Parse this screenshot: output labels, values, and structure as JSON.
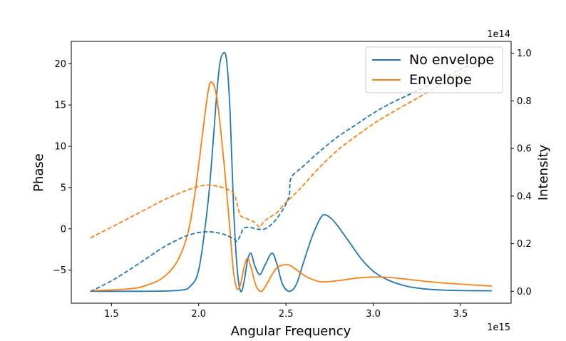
{
  "chart_data": {
    "type": "line",
    "xlabel": "Angular Frequency",
    "x_offset_label": "1e15",
    "xlim": [
      1.27,
      3.79
    ],
    "x_ticks": [
      1.5,
      2.0,
      2.5,
      3.0,
      3.5
    ],
    "x_tick_labels": [
      "1.5",
      "2.0",
      "2.5",
      "3.0",
      "3.5"
    ],
    "left_axis": {
      "label": "Phase",
      "ylim": [
        -9.0,
        22.7
      ],
      "ticks": [
        20,
        15,
        10,
        5,
        0,
        -5
      ],
      "tick_labels": [
        "20",
        "15",
        "10",
        "5",
        "0",
        "−5"
      ]
    },
    "right_axis": {
      "label": "Intensity",
      "offset_label": "1e14",
      "ylim": [
        -0.05,
        1.05
      ],
      "ticks": [
        0.0,
        0.2,
        0.4,
        0.6,
        0.8,
        1.0
      ],
      "tick_labels": [
        "0.0",
        "0.2",
        "0.4",
        "0.6",
        "0.8",
        "1.0"
      ]
    },
    "legend": {
      "placement": "top-right",
      "entries": [
        "No envelope",
        "Envelope"
      ]
    },
    "colors": {
      "no_envelope": "#1f77b4",
      "envelope": "#ff7f0e"
    },
    "series": [
      {
        "name": "No envelope",
        "axis": "right",
        "style": "solid",
        "color": "#1f77b4",
        "points": [
          [
            1.38,
            0.0
          ],
          [
            1.6,
            0.0
          ],
          [
            1.8,
            0.001
          ],
          [
            1.9,
            0.005
          ],
          [
            1.95,
            0.02
          ],
          [
            2.0,
            0.09
          ],
          [
            2.05,
            0.35
          ],
          [
            2.08,
            0.6
          ],
          [
            2.1,
            0.8
          ],
          [
            2.12,
            0.95
          ],
          [
            2.14,
            1.0
          ],
          [
            2.16,
            0.97
          ],
          [
            2.18,
            0.75
          ],
          [
            2.2,
            0.35
          ],
          [
            2.22,
            0.1
          ],
          [
            2.24,
            0.0
          ],
          [
            2.26,
            0.04
          ],
          [
            2.28,
            0.13
          ],
          [
            2.3,
            0.16
          ],
          [
            2.32,
            0.11
          ],
          [
            2.35,
            0.07
          ],
          [
            2.38,
            0.11
          ],
          [
            2.42,
            0.16
          ],
          [
            2.45,
            0.11
          ],
          [
            2.48,
            0.03
          ],
          [
            2.52,
            0.0
          ],
          [
            2.56,
            0.03
          ],
          [
            2.6,
            0.12
          ],
          [
            2.65,
            0.23
          ],
          [
            2.7,
            0.31
          ],
          [
            2.73,
            0.32
          ],
          [
            2.78,
            0.29
          ],
          [
            2.85,
            0.22
          ],
          [
            2.95,
            0.12
          ],
          [
            3.05,
            0.06
          ],
          [
            3.2,
            0.02
          ],
          [
            3.4,
            0.005
          ],
          [
            3.68,
            0.002
          ]
        ]
      },
      {
        "name": "Envelope",
        "axis": "right",
        "style": "solid",
        "color": "#ff7f0e",
        "points": [
          [
            1.38,
            0.002
          ],
          [
            1.6,
            0.01
          ],
          [
            1.7,
            0.025
          ],
          [
            1.8,
            0.06
          ],
          [
            1.88,
            0.13
          ],
          [
            1.94,
            0.25
          ],
          [
            1.98,
            0.42
          ],
          [
            2.02,
            0.65
          ],
          [
            2.05,
            0.82
          ],
          [
            2.07,
            0.88
          ],
          [
            2.1,
            0.83
          ],
          [
            2.13,
            0.65
          ],
          [
            2.16,
            0.42
          ],
          [
            2.18,
            0.25
          ],
          [
            2.2,
            0.08
          ],
          [
            2.22,
            0.01
          ],
          [
            2.24,
            0.03
          ],
          [
            2.26,
            0.1
          ],
          [
            2.28,
            0.14
          ],
          [
            2.3,
            0.1
          ],
          [
            2.33,
            0.02
          ],
          [
            2.36,
            0.0
          ],
          [
            2.39,
            0.03
          ],
          [
            2.42,
            0.07
          ],
          [
            2.45,
            0.1
          ],
          [
            2.48,
            0.11
          ],
          [
            2.52,
            0.11
          ],
          [
            2.56,
            0.09
          ],
          [
            2.62,
            0.06
          ],
          [
            2.7,
            0.04
          ],
          [
            2.8,
            0.045
          ],
          [
            2.9,
            0.055
          ],
          [
            3.0,
            0.06
          ],
          [
            3.1,
            0.058
          ],
          [
            3.2,
            0.05
          ],
          [
            3.4,
            0.035
          ],
          [
            3.68,
            0.022
          ]
        ]
      },
      {
        "name": "No envelope",
        "axis": "left",
        "style": "dashed",
        "color": "#1f77b4",
        "points": [
          [
            1.38,
            -7.6
          ],
          [
            1.5,
            -6.3
          ],
          [
            1.6,
            -5.0
          ],
          [
            1.7,
            -3.6
          ],
          [
            1.8,
            -2.2
          ],
          [
            1.9,
            -1.1
          ],
          [
            1.95,
            -0.7
          ],
          [
            2.0,
            -0.45
          ],
          [
            2.05,
            -0.35
          ],
          [
            2.1,
            -0.45
          ],
          [
            2.15,
            -0.7
          ],
          [
            2.2,
            -1.2
          ],
          [
            2.22,
            -1.5
          ],
          [
            2.24,
            -0.7
          ],
          [
            2.26,
            0.1
          ],
          [
            2.3,
            0.15
          ],
          [
            2.34,
            -0.05
          ],
          [
            2.38,
            0.0
          ],
          [
            2.42,
            0.6
          ],
          [
            2.46,
            1.6
          ],
          [
            2.5,
            3.0
          ],
          [
            2.52,
            4.2
          ],
          [
            2.53,
            6.2
          ],
          [
            2.6,
            7.6
          ],
          [
            2.7,
            9.5
          ],
          [
            2.8,
            11.2
          ],
          [
            2.9,
            12.6
          ],
          [
            3.0,
            14.0
          ],
          [
            3.1,
            15.2
          ],
          [
            3.2,
            16.2
          ],
          [
            3.3,
            17.2
          ],
          [
            3.4,
            18.3
          ],
          [
            3.5,
            19.3
          ],
          [
            3.6,
            20.3
          ],
          [
            3.68,
            21.0
          ]
        ]
      },
      {
        "name": "Envelope",
        "axis": "left",
        "style": "dashed",
        "color": "#ff7f0e",
        "points": [
          [
            1.38,
            -1.1
          ],
          [
            1.5,
            0.2
          ],
          [
            1.6,
            1.3
          ],
          [
            1.7,
            2.4
          ],
          [
            1.8,
            3.5
          ],
          [
            1.9,
            4.4
          ],
          [
            1.95,
            4.8
          ],
          [
            2.0,
            5.15
          ],
          [
            2.05,
            5.3
          ],
          [
            2.1,
            5.2
          ],
          [
            2.15,
            4.9
          ],
          [
            2.2,
            4.3
          ],
          [
            2.22,
            3.0
          ],
          [
            2.24,
            1.6
          ],
          [
            2.28,
            1.2
          ],
          [
            2.32,
            0.8
          ],
          [
            2.35,
            0.2
          ],
          [
            2.37,
            0.8
          ],
          [
            2.4,
            1.3
          ],
          [
            2.45,
            2.0
          ],
          [
            2.5,
            3.2
          ],
          [
            2.55,
            4.2
          ],
          [
            2.6,
            5.3
          ],
          [
            2.7,
            7.6
          ],
          [
            2.8,
            9.6
          ],
          [
            2.9,
            11.2
          ],
          [
            3.0,
            12.7
          ],
          [
            3.1,
            14.0
          ],
          [
            3.2,
            15.2
          ],
          [
            3.3,
            16.4
          ],
          [
            3.4,
            17.6
          ],
          [
            3.5,
            18.8
          ],
          [
            3.6,
            20.0
          ],
          [
            3.68,
            21.0
          ]
        ]
      }
    ]
  }
}
